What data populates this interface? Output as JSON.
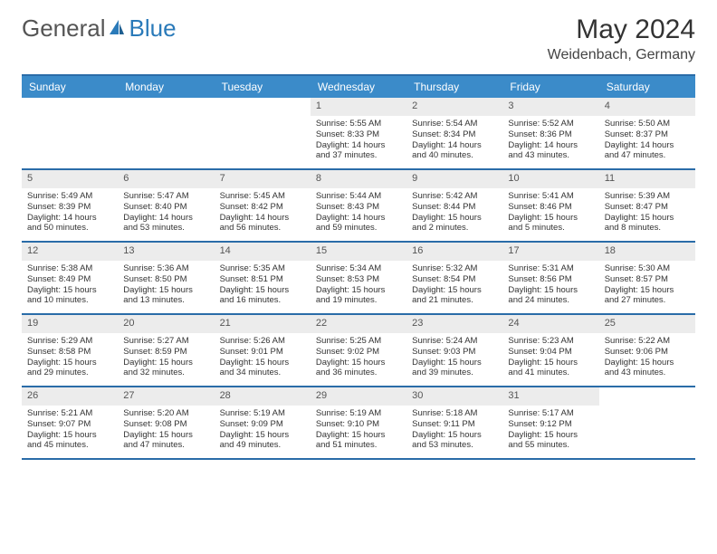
{
  "logo": {
    "text1": "General",
    "text2": "Blue"
  },
  "title": "May 2024",
  "location": "Weidenbach, Germany",
  "colors": {
    "header_bg": "#3b8bc9",
    "header_text": "#ffffff",
    "rule": "#2a6ca8",
    "daynum_bg": "#ececec",
    "body_text": "#333333",
    "logo_gray": "#555555",
    "logo_blue": "#2a7ab9"
  },
  "dow": [
    "Sunday",
    "Monday",
    "Tuesday",
    "Wednesday",
    "Thursday",
    "Friday",
    "Saturday"
  ],
  "weeks": [
    [
      {
        "n": "",
        "sr": "",
        "ss": "",
        "dl": ""
      },
      {
        "n": "",
        "sr": "",
        "ss": "",
        "dl": ""
      },
      {
        "n": "",
        "sr": "",
        "ss": "",
        "dl": ""
      },
      {
        "n": "1",
        "sr": "Sunrise: 5:55 AM",
        "ss": "Sunset: 8:33 PM",
        "dl": "Daylight: 14 hours and 37 minutes."
      },
      {
        "n": "2",
        "sr": "Sunrise: 5:54 AM",
        "ss": "Sunset: 8:34 PM",
        "dl": "Daylight: 14 hours and 40 minutes."
      },
      {
        "n": "3",
        "sr": "Sunrise: 5:52 AM",
        "ss": "Sunset: 8:36 PM",
        "dl": "Daylight: 14 hours and 43 minutes."
      },
      {
        "n": "4",
        "sr": "Sunrise: 5:50 AM",
        "ss": "Sunset: 8:37 PM",
        "dl": "Daylight: 14 hours and 47 minutes."
      }
    ],
    [
      {
        "n": "5",
        "sr": "Sunrise: 5:49 AM",
        "ss": "Sunset: 8:39 PM",
        "dl": "Daylight: 14 hours and 50 minutes."
      },
      {
        "n": "6",
        "sr": "Sunrise: 5:47 AM",
        "ss": "Sunset: 8:40 PM",
        "dl": "Daylight: 14 hours and 53 minutes."
      },
      {
        "n": "7",
        "sr": "Sunrise: 5:45 AM",
        "ss": "Sunset: 8:42 PM",
        "dl": "Daylight: 14 hours and 56 minutes."
      },
      {
        "n": "8",
        "sr": "Sunrise: 5:44 AM",
        "ss": "Sunset: 8:43 PM",
        "dl": "Daylight: 14 hours and 59 minutes."
      },
      {
        "n": "9",
        "sr": "Sunrise: 5:42 AM",
        "ss": "Sunset: 8:44 PM",
        "dl": "Daylight: 15 hours and 2 minutes."
      },
      {
        "n": "10",
        "sr": "Sunrise: 5:41 AM",
        "ss": "Sunset: 8:46 PM",
        "dl": "Daylight: 15 hours and 5 minutes."
      },
      {
        "n": "11",
        "sr": "Sunrise: 5:39 AM",
        "ss": "Sunset: 8:47 PM",
        "dl": "Daylight: 15 hours and 8 minutes."
      }
    ],
    [
      {
        "n": "12",
        "sr": "Sunrise: 5:38 AM",
        "ss": "Sunset: 8:49 PM",
        "dl": "Daylight: 15 hours and 10 minutes."
      },
      {
        "n": "13",
        "sr": "Sunrise: 5:36 AM",
        "ss": "Sunset: 8:50 PM",
        "dl": "Daylight: 15 hours and 13 minutes."
      },
      {
        "n": "14",
        "sr": "Sunrise: 5:35 AM",
        "ss": "Sunset: 8:51 PM",
        "dl": "Daylight: 15 hours and 16 minutes."
      },
      {
        "n": "15",
        "sr": "Sunrise: 5:34 AM",
        "ss": "Sunset: 8:53 PM",
        "dl": "Daylight: 15 hours and 19 minutes."
      },
      {
        "n": "16",
        "sr": "Sunrise: 5:32 AM",
        "ss": "Sunset: 8:54 PM",
        "dl": "Daylight: 15 hours and 21 minutes."
      },
      {
        "n": "17",
        "sr": "Sunrise: 5:31 AM",
        "ss": "Sunset: 8:56 PM",
        "dl": "Daylight: 15 hours and 24 minutes."
      },
      {
        "n": "18",
        "sr": "Sunrise: 5:30 AM",
        "ss": "Sunset: 8:57 PM",
        "dl": "Daylight: 15 hours and 27 minutes."
      }
    ],
    [
      {
        "n": "19",
        "sr": "Sunrise: 5:29 AM",
        "ss": "Sunset: 8:58 PM",
        "dl": "Daylight: 15 hours and 29 minutes."
      },
      {
        "n": "20",
        "sr": "Sunrise: 5:27 AM",
        "ss": "Sunset: 8:59 PM",
        "dl": "Daylight: 15 hours and 32 minutes."
      },
      {
        "n": "21",
        "sr": "Sunrise: 5:26 AM",
        "ss": "Sunset: 9:01 PM",
        "dl": "Daylight: 15 hours and 34 minutes."
      },
      {
        "n": "22",
        "sr": "Sunrise: 5:25 AM",
        "ss": "Sunset: 9:02 PM",
        "dl": "Daylight: 15 hours and 36 minutes."
      },
      {
        "n": "23",
        "sr": "Sunrise: 5:24 AM",
        "ss": "Sunset: 9:03 PM",
        "dl": "Daylight: 15 hours and 39 minutes."
      },
      {
        "n": "24",
        "sr": "Sunrise: 5:23 AM",
        "ss": "Sunset: 9:04 PM",
        "dl": "Daylight: 15 hours and 41 minutes."
      },
      {
        "n": "25",
        "sr": "Sunrise: 5:22 AM",
        "ss": "Sunset: 9:06 PM",
        "dl": "Daylight: 15 hours and 43 minutes."
      }
    ],
    [
      {
        "n": "26",
        "sr": "Sunrise: 5:21 AM",
        "ss": "Sunset: 9:07 PM",
        "dl": "Daylight: 15 hours and 45 minutes."
      },
      {
        "n": "27",
        "sr": "Sunrise: 5:20 AM",
        "ss": "Sunset: 9:08 PM",
        "dl": "Daylight: 15 hours and 47 minutes."
      },
      {
        "n": "28",
        "sr": "Sunrise: 5:19 AM",
        "ss": "Sunset: 9:09 PM",
        "dl": "Daylight: 15 hours and 49 minutes."
      },
      {
        "n": "29",
        "sr": "Sunrise: 5:19 AM",
        "ss": "Sunset: 9:10 PM",
        "dl": "Daylight: 15 hours and 51 minutes."
      },
      {
        "n": "30",
        "sr": "Sunrise: 5:18 AM",
        "ss": "Sunset: 9:11 PM",
        "dl": "Daylight: 15 hours and 53 minutes."
      },
      {
        "n": "31",
        "sr": "Sunrise: 5:17 AM",
        "ss": "Sunset: 9:12 PM",
        "dl": "Daylight: 15 hours and 55 minutes."
      },
      {
        "n": "",
        "sr": "",
        "ss": "",
        "dl": ""
      }
    ]
  ]
}
